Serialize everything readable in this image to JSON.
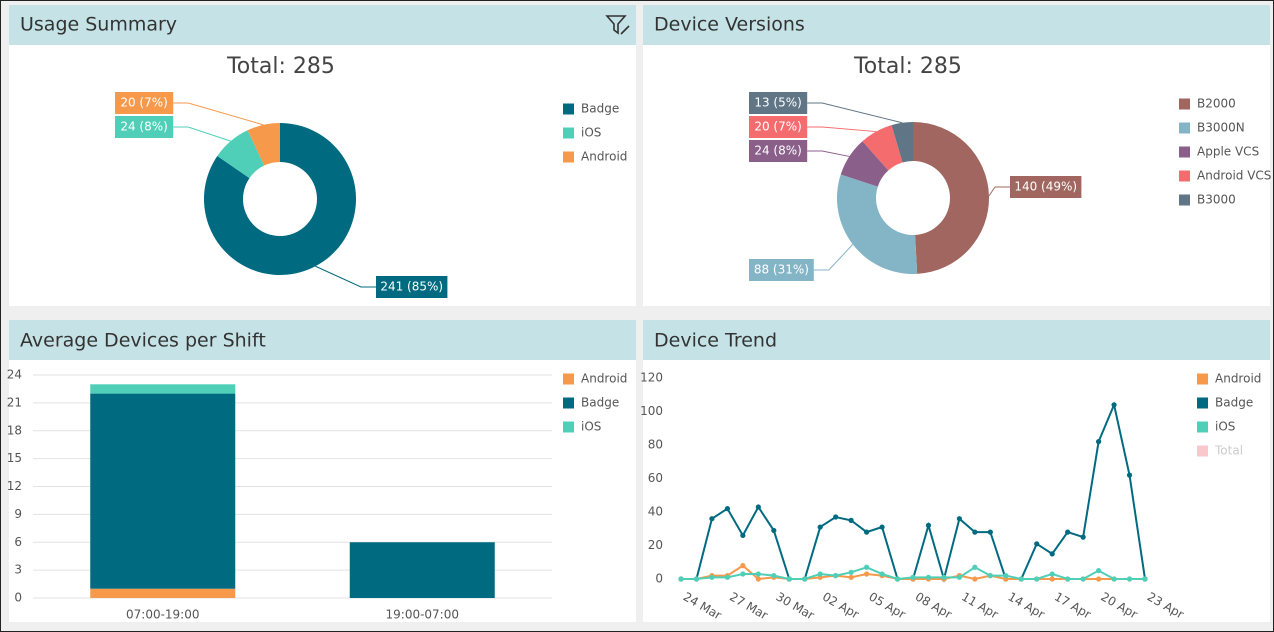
{
  "chart_data": [
    {
      "type": "donut",
      "title": "Usage Summary",
      "subtitle": "Total: 285",
      "categories": [
        "Badge",
        "iOS",
        "Android"
      ],
      "values": [
        241,
        24,
        20
      ],
      "value_labels": [
        "241 (85%)",
        "24 (8%)",
        "20 (7%)"
      ],
      "colors": [
        "#006a80",
        "#4fcfb8",
        "#f7994a"
      ],
      "legend": "right"
    },
    {
      "type": "donut",
      "title": "Device Versions",
      "subtitle": "Total: 285",
      "categories": [
        "B2000",
        "B3000N",
        "Apple VCS",
        "Android VCS",
        "B3000"
      ],
      "values": [
        140,
        88,
        24,
        20,
        13
      ],
      "value_labels": [
        "140 (49%)",
        "88 (31%)",
        "24 (8%)",
        "20 (7%)",
        "13 (5%)"
      ],
      "colors": [
        "#a0665f",
        "#84b5c7",
        "#8a5f8a",
        "#f56c6f",
        "#607585"
      ],
      "legend": "right"
    },
    {
      "type": "stacked_bar",
      "title": "Average Devices per Shift",
      "categories": [
        "07:00-19:00",
        "19:00-07:00"
      ],
      "series": [
        {
          "name": "Android",
          "color": "#f7994a",
          "values": [
            1,
            0
          ]
        },
        {
          "name": "Badge",
          "color": "#006a80",
          "values": [
            21,
            6
          ]
        },
        {
          "name": "iOS",
          "color": "#4fcfb8",
          "values": [
            1,
            0
          ]
        }
      ],
      "ylim": [
        0,
        24
      ],
      "yticks": [
        0,
        3,
        6,
        9,
        12,
        15,
        18,
        21,
        24
      ],
      "grid": true,
      "legend": "right"
    },
    {
      "type": "line",
      "title": "Device Trend",
      "categories": [
        "24 Mar",
        null,
        null,
        "27 Mar",
        null,
        null,
        "30 Mar",
        null,
        null,
        "02 Apr",
        null,
        null,
        "05 Apr",
        null,
        null,
        "08 Apr",
        null,
        null,
        "11 Apr",
        null,
        null,
        "14 Apr",
        null,
        null,
        "17 Apr",
        null,
        null,
        "20 Apr",
        null,
        null,
        "23 Apr"
      ],
      "series": [
        {
          "name": "Android",
          "color": "#f7994a",
          "values": [
            0,
            0,
            2,
            2,
            8,
            0,
            1,
            0,
            0,
            1,
            2,
            1,
            3,
            2,
            0,
            0,
            0,
            0,
            2,
            0,
            2,
            0,
            0,
            0,
            0,
            0,
            0,
            0,
            0,
            0,
            0
          ]
        },
        {
          "name": "Badge",
          "color": "#006a80",
          "values": [
            0,
            0,
            36,
            42,
            26,
            43,
            29,
            0,
            0,
            31,
            37,
            35,
            28,
            31,
            0,
            0,
            32,
            0,
            36,
            28,
            28,
            0,
            0,
            21,
            15,
            28,
            25,
            82,
            104,
            62,
            0
          ]
        },
        {
          "name": "iOS",
          "color": "#4fcfb8",
          "values": [
            0,
            0,
            1,
            1,
            3,
            3,
            2,
            0,
            0,
            3,
            2,
            4,
            7,
            3,
            0,
            1,
            1,
            1,
            1,
            7,
            2,
            2,
            0,
            0,
            3,
            0,
            0,
            5,
            0,
            0,
            0
          ]
        },
        {
          "name": "Total",
          "color": "#f8c8cc",
          "hidden": true
        }
      ],
      "ylim": [
        0,
        120
      ],
      "yticks": [
        0,
        20,
        40,
        60,
        80,
        100,
        120
      ],
      "grid": false,
      "legend": "right"
    }
  ]
}
